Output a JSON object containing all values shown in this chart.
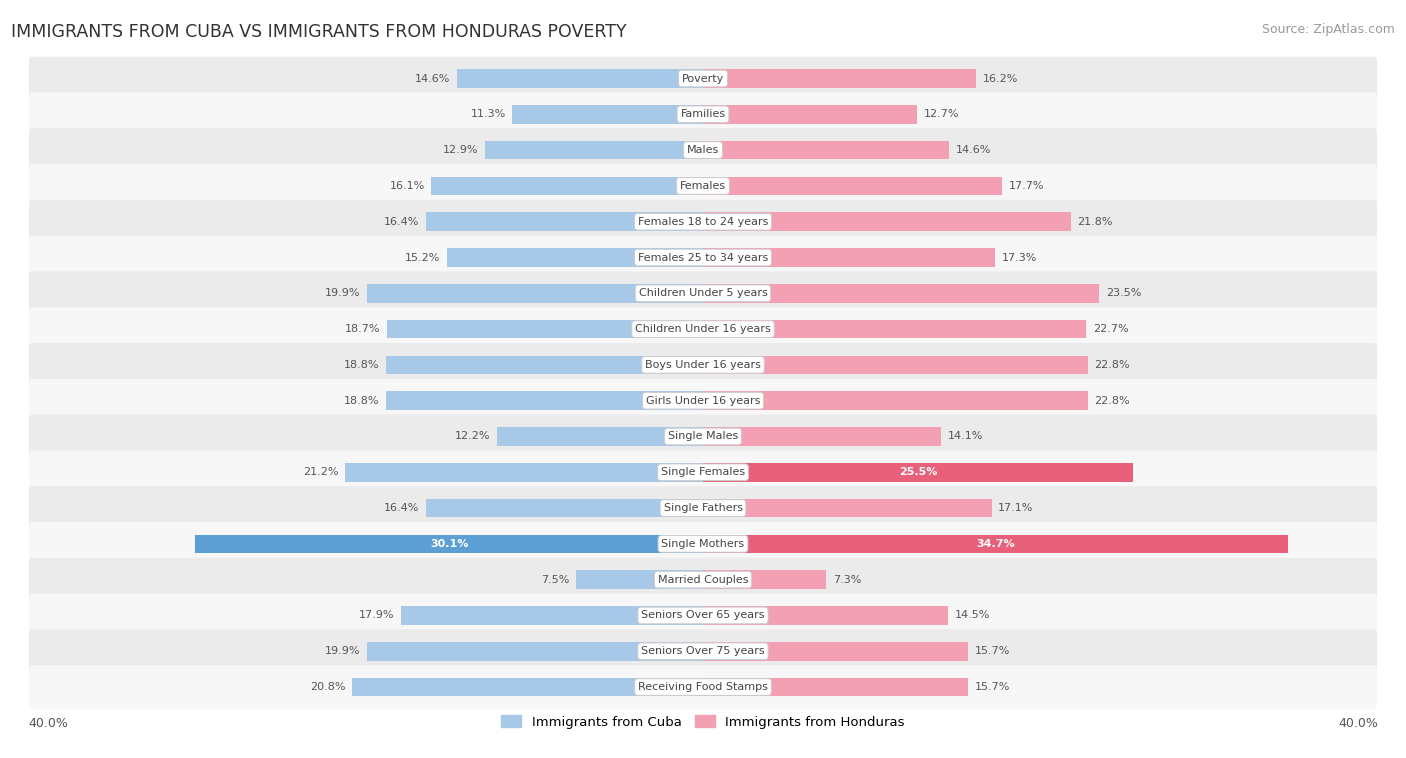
{
  "title": "IMMIGRANTS FROM CUBA VS IMMIGRANTS FROM HONDURAS POVERTY",
  "source": "Source: ZipAtlas.com",
  "categories": [
    "Poverty",
    "Families",
    "Males",
    "Females",
    "Females 18 to 24 years",
    "Females 25 to 34 years",
    "Children Under 5 years",
    "Children Under 16 years",
    "Boys Under 16 years",
    "Girls Under 16 years",
    "Single Males",
    "Single Females",
    "Single Fathers",
    "Single Mothers",
    "Married Couples",
    "Seniors Over 65 years",
    "Seniors Over 75 years",
    "Receiving Food Stamps"
  ],
  "cuba_values": [
    14.6,
    11.3,
    12.9,
    16.1,
    16.4,
    15.2,
    19.9,
    18.7,
    18.8,
    18.8,
    12.2,
    21.2,
    16.4,
    30.1,
    7.5,
    17.9,
    19.9,
    20.8
  ],
  "honduras_values": [
    16.2,
    12.7,
    14.6,
    17.7,
    21.8,
    17.3,
    23.5,
    22.7,
    22.8,
    22.8,
    14.1,
    25.5,
    17.1,
    34.7,
    7.3,
    14.5,
    15.7,
    15.7
  ],
  "cuba_color": "#a8c8e8",
  "honduras_color": "#f4a0b4",
  "cuba_highlight_indices": [
    13
  ],
  "honduras_highlight_indices": [
    11,
    13
  ],
  "cuba_color_highlight": "#5b9fd4",
  "honduras_color_highlight": "#e8607a",
  "row_bg_even": "#ebebeb",
  "row_bg_odd": "#f7f7f7",
  "label_color": "#555555",
  "title_color": "#333333",
  "max_value": 40.0,
  "bar_height": 0.52,
  "legend_cuba": "Immigrants from Cuba",
  "legend_honduras": "Immigrants from Honduras"
}
